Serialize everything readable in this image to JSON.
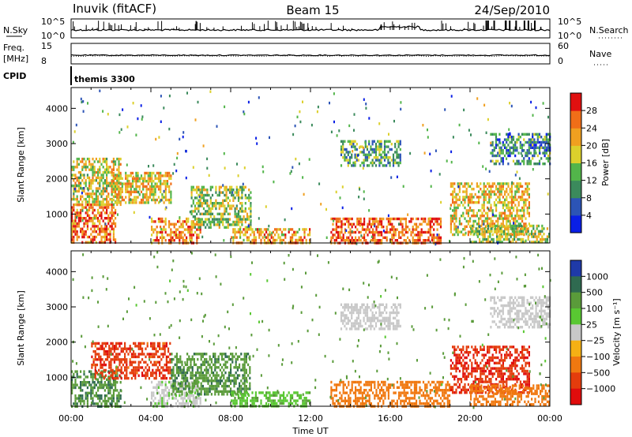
{
  "header": {
    "station": "Inuvik (fitACF)",
    "beam": "Beam 15",
    "date": "24/Sep/2010"
  },
  "strips": {
    "nsky": {
      "label": "N.Sky",
      "ticks_left": [
        "10^5",
        "10^0"
      ]
    },
    "nsearch": {
      "label": "N.Search",
      "ticks_right": [
        "10^5",
        "10^0"
      ]
    },
    "freq": {
      "label_line1": "Freq.",
      "label_line2": "[MHz]",
      "ticks_left": [
        "15",
        "8"
      ]
    },
    "nave": {
      "label": "Nave",
      "ticks_right": [
        "60",
        "0"
      ]
    },
    "cpid": {
      "label": "CPID",
      "value": "themis 3300"
    }
  },
  "axes": {
    "ylabel": "Slant Range [km]",
    "xlabel": "Time UT",
    "yticks": [
      1000,
      2000,
      3000,
      4000
    ],
    "xtick_labels": [
      "00:00",
      "04:00",
      "08:00",
      "12:00",
      "16:00",
      "20:00",
      "00:00"
    ]
  },
  "chart_data": [
    {
      "type": "heatmap",
      "title": "",
      "xlabel": "",
      "ylabel": "Slant Range [km]",
      "x_range": [
        "00:00",
        "24:00"
      ],
      "ylim": [
        180,
        4590
      ],
      "colorbar": {
        "label": "Power [dB]",
        "ticks": [
          4,
          8,
          12,
          16,
          20,
          24,
          28
        ],
        "range": [
          0,
          32
        ],
        "colors": [
          "#0a1fe6",
          "#2c54b6",
          "#3b8a5c",
          "#52b54a",
          "#dcd02c",
          "#f0a020",
          "#f06e18",
          "#e01010"
        ]
      },
      "regions": [
        {
          "t": [
            0.0,
            2.2
          ],
          "r": [
            200,
            1300
          ],
          "value": 26
        },
        {
          "t": [
            0.0,
            2.5
          ],
          "r": [
            1300,
            2600
          ],
          "value": 18
        },
        {
          "t": [
            2.0,
            5.0
          ],
          "r": [
            1300,
            2200
          ],
          "value": 20
        },
        {
          "t": [
            4.0,
            6.5
          ],
          "r": [
            200,
            900
          ],
          "value": 24
        },
        {
          "t": [
            6.0,
            9.0
          ],
          "r": [
            600,
            1800
          ],
          "value": 16
        },
        {
          "t": [
            8.0,
            12.0
          ],
          "r": [
            200,
            600
          ],
          "value": 22
        },
        {
          "t": [
            13.0,
            18.5
          ],
          "r": [
            200,
            900
          ],
          "value": 27
        },
        {
          "t": [
            13.5,
            16.5
          ],
          "r": [
            2400,
            3100
          ],
          "value": 12
        },
        {
          "t": [
            19.0,
            23.0
          ],
          "r": [
            400,
            1900
          ],
          "value": 20
        },
        {
          "t": [
            20.0,
            24.0
          ],
          "r": [
            200,
            700
          ],
          "value": 16
        },
        {
          "t": [
            21.0,
            24.0
          ],
          "r": [
            2400,
            3300
          ],
          "value": 10
        }
      ]
    },
    {
      "type": "heatmap",
      "title": "",
      "xlabel": "Time UT",
      "ylabel": "Slant Range [km]",
      "x_range": [
        "00:00",
        "24:00"
      ],
      "ylim": [
        180,
        4590
      ],
      "colorbar": {
        "label": "Velocity [m s⁻¹]",
        "ticks": [
          "1000",
          "500",
          "100",
          "25",
          "−25",
          "−100",
          "−500",
          "−1000"
        ],
        "colors": [
          "#1f3aa8",
          "#2f6a50",
          "#5a9b3a",
          "#59c832",
          "#c8c8c8",
          "#f5b014",
          "#f07810",
          "#e43c0c",
          "#e00c0c"
        ]
      },
      "regions": [
        {
          "t": [
            0.0,
            2.5
          ],
          "r": [
            200,
            1200
          ],
          "value": 450
        },
        {
          "t": [
            1.0,
            5.0
          ],
          "r": [
            1000,
            2000
          ],
          "value": -800
        },
        {
          "t": [
            4.0,
            6.5
          ],
          "r": [
            200,
            900
          ],
          "value": 20
        },
        {
          "t": [
            5.0,
            9.0
          ],
          "r": [
            500,
            1700
          ],
          "value": 400
        },
        {
          "t": [
            8.0,
            12.0
          ],
          "r": [
            200,
            600
          ],
          "value": 80
        },
        {
          "t": [
            13.0,
            19.0
          ],
          "r": [
            200,
            900
          ],
          "value": -300
        },
        {
          "t": [
            13.5,
            16.5
          ],
          "r": [
            2400,
            3100
          ],
          "value": 10
        },
        {
          "t": [
            19.0,
            23.0
          ],
          "r": [
            600,
            1900
          ],
          "value": -900
        },
        {
          "t": [
            20.0,
            24.0
          ],
          "r": [
            200,
            800
          ],
          "value": -300
        },
        {
          "t": [
            21.0,
            24.0
          ],
          "r": [
            2400,
            3300
          ],
          "value": 15
        }
      ]
    }
  ]
}
